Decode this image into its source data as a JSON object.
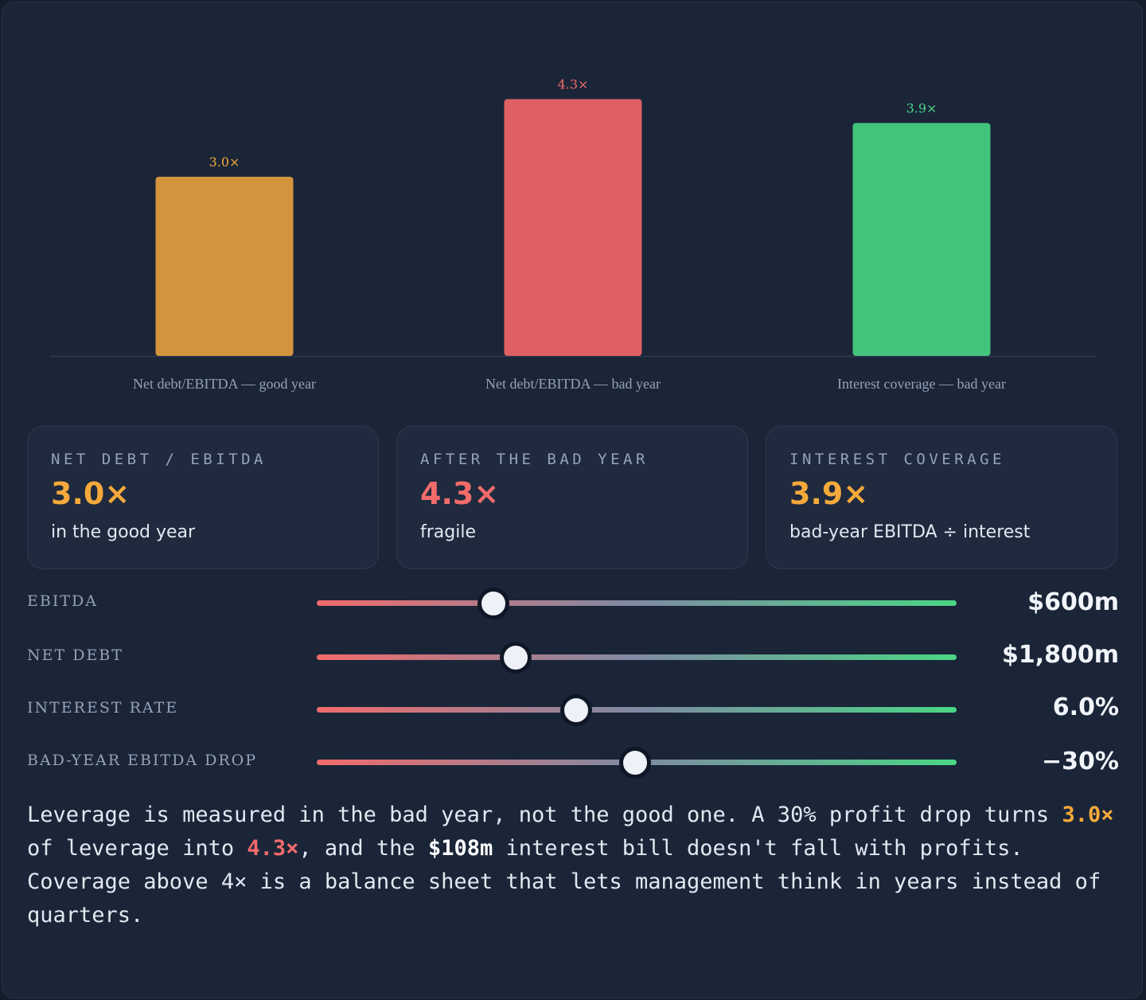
{
  "chart_data": {
    "type": "bar",
    "categories": [
      "Net debt/EBITDA — good year",
      "Net debt/EBITDA — bad year",
      "Interest coverage — bad year"
    ],
    "values": [
      3.0,
      4.3,
      3.9
    ],
    "value_labels": [
      "3.0×",
      "4.3×",
      "3.9×"
    ],
    "colors": [
      "#d4943d",
      "#df6064",
      "#43c47c"
    ],
    "label_colors": [
      "#f5a93b",
      "#f26b6b",
      "#4ad684"
    ],
    "ylim": [
      0,
      5.0
    ],
    "grid": false
  },
  "cards": [
    {
      "caption": "NET DEBT / EBITDA",
      "value": "3.0×",
      "sub": "in the good year",
      "color": "#f5a93b"
    },
    {
      "caption": "AFTER THE BAD YEAR",
      "value": "4.3×",
      "sub": "fragile",
      "color": "#f26b6b"
    },
    {
      "caption": "INTEREST COVERAGE",
      "value": "3.9×",
      "sub": "bad-year EBITDA ÷ interest",
      "color": "#f5a93b"
    }
  ],
  "sliders": [
    {
      "label": "EBITDA",
      "value": "$600m",
      "position": 0.276
    },
    {
      "label": "NET DEBT",
      "value": "$1,800m",
      "position": 0.311
    },
    {
      "label": "INTEREST RATE",
      "value": "6.0%",
      "position": 0.405
    },
    {
      "label": "BAD-YEAR EBITDA DROP",
      "value": "−30%",
      "position": 0.498
    }
  ],
  "note": {
    "p1": "Leverage is measured in the bad year, not the good one. A 30% profit drop turns ",
    "lev_good": "3.0×",
    "p2": " of leverage into ",
    "lev_bad": "4.3×",
    "p3": ", and the ",
    "interest": "$108m",
    "p4": " interest bill doesn't fall with profits. Coverage above 4× is a balance sheet that lets management think in years instead of quarters."
  },
  "colors": {
    "background": "#1b2538",
    "amber": "#f5a93b",
    "red": "#f26b6b",
    "green": "#4ad684"
  }
}
